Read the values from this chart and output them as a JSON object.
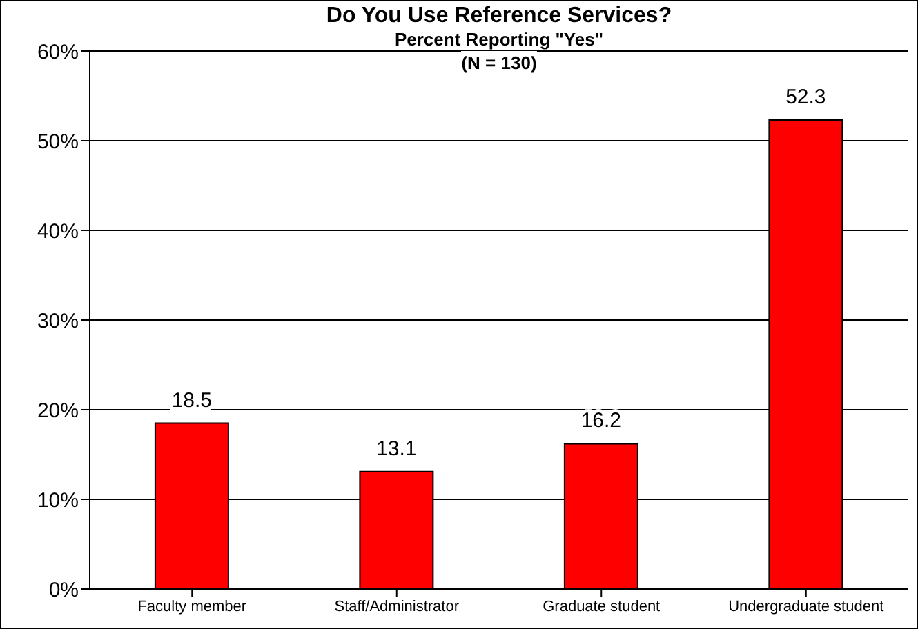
{
  "chart_data": {
    "type": "bar",
    "title": "Do You Use Reference Services?",
    "subtitle": "Percent Reporting \"Yes\"",
    "annotations": [
      "(N = 130)"
    ],
    "categories": [
      "Faculty member",
      "Staff/Administrator",
      "Graduate student",
      "Undergraduate student"
    ],
    "values": [
      18.5,
      13.1,
      16.2,
      52.3
    ],
    "color": "#ff0000",
    "ylim": [
      0,
      60
    ],
    "yticks": [
      {
        "value": 0,
        "label": "0%"
      },
      {
        "value": 10,
        "label": "10%"
      },
      {
        "value": 20,
        "label": "20%"
      },
      {
        "value": 30,
        "label": "30%"
      },
      {
        "value": 40,
        "label": "40%"
      },
      {
        "value": 50,
        "label": "50%"
      },
      {
        "value": 60,
        "label": "60%"
      }
    ],
    "grid": "y",
    "data_labels": true,
    "legend": false
  }
}
